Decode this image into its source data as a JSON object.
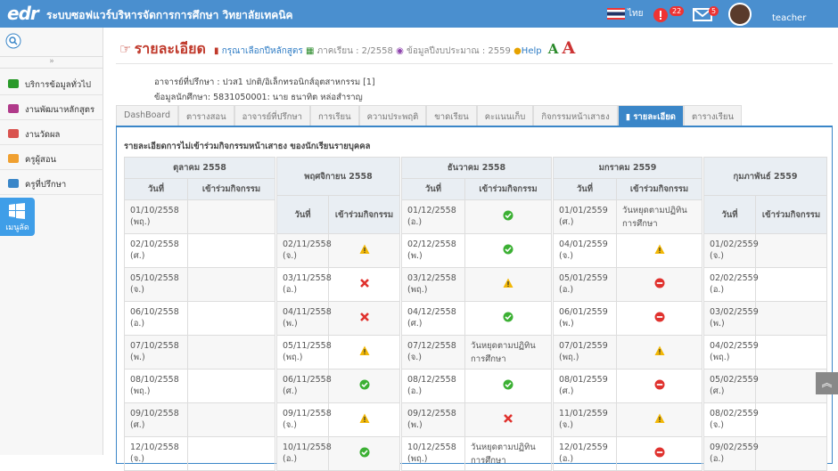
{
  "header": {
    "logo": "edr",
    "title": "ระบบซอฟแวร์บริหารจัดการการศึกษา วิทยาลัยเทคนิค",
    "language": "ไทย",
    "alerts": "22",
    "messages": "5",
    "user": "teacher"
  },
  "sidebar": {
    "toggle": "»",
    "items": [
      "บริการข้อมูลทั่วไป",
      "งานพัฒนาหลักสูตร",
      "งานวัดผล",
      "ครูผู้สอน",
      "ครูที่ปรึกษา"
    ],
    "shortcut": "เมนูลัด"
  },
  "page": {
    "heading": "รายละเอียด",
    "course_link": "กรุณาเลือกปีหลักสูตร",
    "term": "ภาคเรียน : 2/2558",
    "budget": "ข้อมูลปีงบประมาณ : 2559",
    "help": "Help",
    "font_small": "A",
    "font_large": "A",
    "advisor": "อาจารย์ที่ปรึกษา : ปวส1 ปกติ/อิเล็กทรอนิกส์อุตสาหกรรม [1]",
    "student": "ข้อมูลนักศึกษา: 5831050001: นาย ธนาทิต หล่อสำราญ"
  },
  "tabs": {
    "items": [
      "DashBoard",
      "ตารางสอน",
      "อาจารย์ที่ปรึกษา",
      "การเรียน",
      "ความประพฤติ",
      "ขาดเรียน",
      "คะแนนเก็บ",
      "กิจกรรมหน้าเสาธง",
      "รายละเอียด",
      "ตารางเรียน"
    ],
    "active": 8
  },
  "panel": {
    "title": "รายละเอียดการไม่เข้าร่วมกิจกรรมหน้าเสาธง ของนักเรียนรายบุคคล",
    "date_header": "วันที่",
    "activity_header": "เข้าร่วมกิจกรรม",
    "months": [
      {
        "name": "ตุลาคม 2558",
        "rows": [
          {
            "date": "01/10/2558 (พฤ.)"
          },
          {
            "date": "02/10/2558 (ศ.)"
          },
          {
            "date": "05/10/2558 (จ.)"
          },
          {
            "date": "06/10/2558 (อ.)"
          },
          {
            "date": "07/10/2558 (พ.)"
          },
          {
            "date": "08/10/2558 (พฤ.)"
          },
          {
            "date": "09/10/2558 (ศ.)"
          },
          {
            "date": "12/10/2558 (จ.)"
          }
        ]
      },
      {
        "name": "พฤศจิกายน 2558",
        "rows": [
          {
            "date": "02/11/2558 (จ.)",
            "icon": "warning"
          },
          {
            "date": "03/11/2558 (อ.)",
            "icon": "cross"
          },
          {
            "date": "04/11/2558 (พ.)",
            "icon": "cross"
          },
          {
            "date": "05/11/2558 (พฤ.)",
            "icon": "warning"
          },
          {
            "date": "06/11/2558 (ศ.)",
            "icon": "check"
          },
          {
            "date": "09/11/2558 (จ.)",
            "icon": "warning"
          },
          {
            "date": "10/11/2558 (อ.)",
            "icon": "check"
          }
        ]
      },
      {
        "name": "ธันวาคม 2558",
        "rows": [
          {
            "date": "01/12/2558 (อ.)",
            "icon": "check"
          },
          {
            "date": "02/12/2558 (พ.)",
            "icon": "check"
          },
          {
            "date": "03/12/2558 (พฤ.)",
            "icon": "warning"
          },
          {
            "date": "04/12/2558 (ศ.)",
            "icon": "check"
          },
          {
            "date": "07/12/2558 (จ.)",
            "note": "วันหยุดตามปฏิทินการศึกษา"
          },
          {
            "date": "08/12/2558 (อ.)",
            "icon": "check"
          },
          {
            "date": "09/12/2558 (พ.)",
            "icon": "cross"
          },
          {
            "date": "10/12/2558 (พฤ.)",
            "note": "วันหยุดตามปฏิทินการศึกษา"
          }
        ]
      },
      {
        "name": "มกราคม 2559",
        "rows": [
          {
            "date": "01/01/2559 (ศ.)",
            "note": "วันหยุดตามปฏิทินการศึกษา"
          },
          {
            "date": "04/01/2559 (จ.)",
            "icon": "warning"
          },
          {
            "date": "05/01/2559 (อ.)",
            "icon": "minus"
          },
          {
            "date": "06/01/2559 (พ.)",
            "icon": "minus"
          },
          {
            "date": "07/01/2559 (พฤ.)",
            "icon": "warning"
          },
          {
            "date": "08/01/2559 (ศ.)",
            "icon": "minus"
          },
          {
            "date": "11/01/2559 (จ.)",
            "icon": "warning"
          },
          {
            "date": "12/01/2559 (อ.)",
            "icon": "minus"
          }
        ]
      },
      {
        "name": "กุมภาพันธ์ 2559",
        "rows": [
          {
            "date": "01/02/2559 (จ.)"
          },
          {
            "date": "02/02/2559 (อ.)"
          },
          {
            "date": "03/02/2559 (พ.)"
          },
          {
            "date": "04/02/2559 (พฤ.)"
          },
          {
            "date": "05/02/2559 (ศ.)"
          },
          {
            "date": "08/02/2559 (จ.)"
          },
          {
            "date": "09/02/2559 (อ.)"
          }
        ]
      }
    ]
  }
}
